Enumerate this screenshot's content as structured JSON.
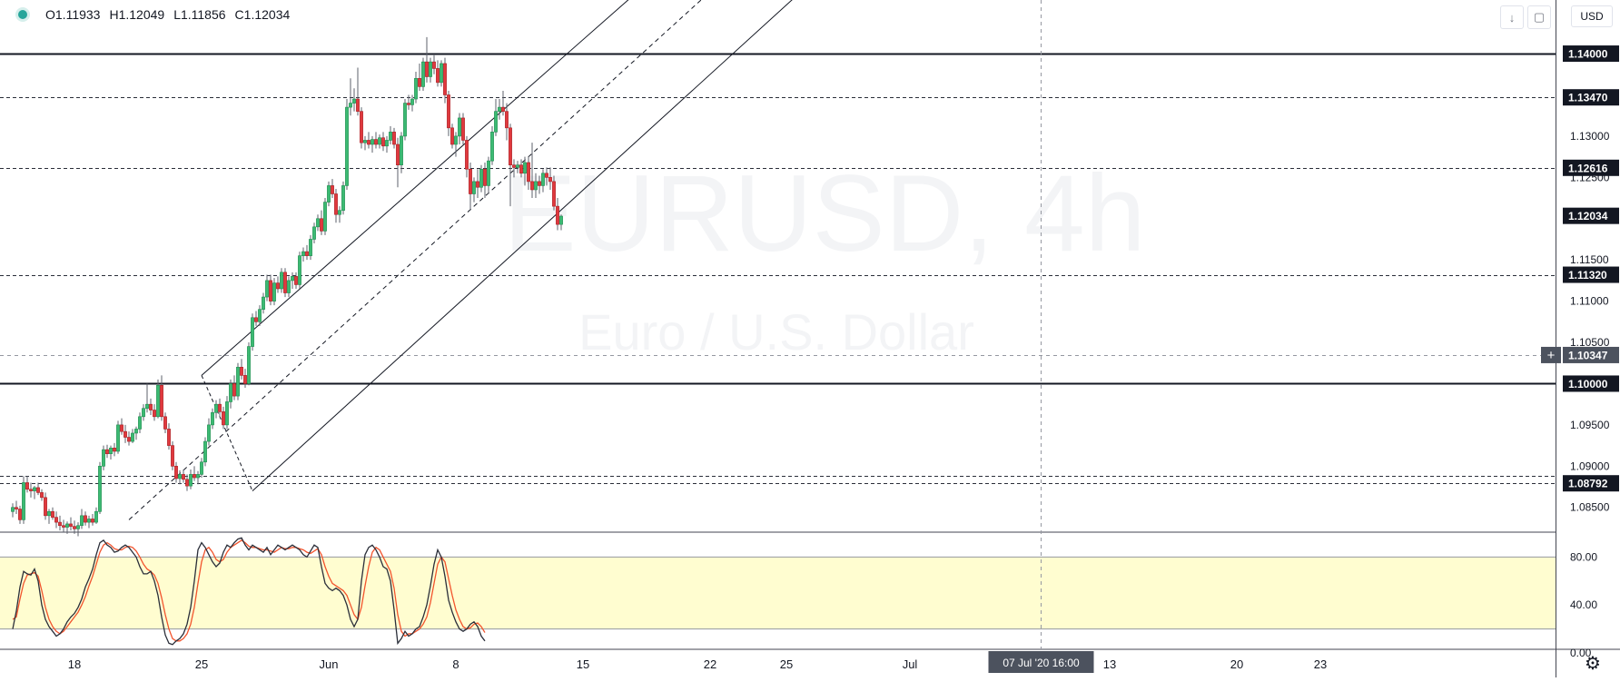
{
  "header": {
    "open": "O1.11933",
    "high": "H1.12049",
    "low": "L1.11856",
    "close": "C1.12034",
    "currency_label": "USD",
    "scroll_down_icon": "arrow-down-icon",
    "fullscreen_icon": "fullscreen-icon"
  },
  "watermark": {
    "symbol": "EURUSD, 4h",
    "description": "Euro / U.S. Dollar"
  },
  "colors": {
    "up": "#26a69a",
    "down": "#ef5350",
    "up_candle": "#3cba73",
    "down_candle": "#e0393e",
    "stoch_k": "#2a2e39",
    "stoch_d": "#f2542d",
    "stoch_band": "#fffdd0"
  },
  "chart_data": {
    "type": "candlestick",
    "price_axis": {
      "range": [
        1.082,
        1.1465
      ],
      "tick_labels": [
        "1.13000",
        "1.12500",
        "1.11500",
        "1.11000",
        "1.10500",
        "1.09500",
        "1.09000",
        "1.08500"
      ],
      "price_labels": [
        {
          "value": "1.14000",
          "level": 1.14,
          "style": "dark"
        },
        {
          "value": "1.13470",
          "level": 1.1347,
          "style": "dark"
        },
        {
          "value": "1.12616",
          "level": 1.12616,
          "style": "dark"
        },
        {
          "value": "1.12034",
          "level": 1.12034,
          "style": "dark"
        },
        {
          "value": "1.11320",
          "level": 1.1132,
          "style": "dark"
        },
        {
          "value": "1.10347",
          "level": 1.10347,
          "style": "crosshair"
        },
        {
          "value": "1.10000",
          "level": 1.1,
          "style": "dark"
        },
        {
          "value": "1.08792",
          "level": 1.08792,
          "style": "dark"
        }
      ]
    },
    "time_axis": {
      "labels": [
        {
          "text": "18",
          "index": 17
        },
        {
          "text": "25",
          "index": 52
        },
        {
          "text": "Jun",
          "index": 87
        },
        {
          "text": "8",
          "index": 122
        },
        {
          "text": "15",
          "index": 157
        },
        {
          "text": "22",
          "index": 192
        },
        {
          "text": "25",
          "index": 213
        },
        {
          "text": "Jul",
          "index": 247
        },
        {
          "text": "13",
          "index": 302
        },
        {
          "text": "20",
          "index": 337
        },
        {
          "text": "23",
          "index": 360
        }
      ],
      "crosshair_label": "07 Jul '20   16:00",
      "crosshair_index": 283
    },
    "horizontal_lines": [
      {
        "level": 1.14,
        "style": "solid"
      },
      {
        "level": 1.1347,
        "style": "dashed"
      },
      {
        "level": 1.12616,
        "style": "dashed"
      },
      {
        "level": 1.1132,
        "style": "dashed"
      },
      {
        "level": 1.10347,
        "style": "crosshair"
      },
      {
        "level": 1.1,
        "style": "solid"
      },
      {
        "level": 1.0888,
        "style": "dashed"
      },
      {
        "level": 1.08792,
        "style": "dashed"
      }
    ],
    "trend_channel": {
      "upper": [
        [
          52,
          1.101
        ],
        [
          172,
          1.1475
        ]
      ],
      "middle": [
        [
          32,
          1.0835
        ],
        [
          192,
          1.1475
        ]
      ],
      "lower": [
        [
          66,
          1.087
        ],
        [
          217,
          1.1475
        ]
      ],
      "retrace": [
        [
          52,
          1.101
        ],
        [
          66,
          1.087
        ]
      ]
    },
    "candles": [
      [
        1.0845,
        1.0855,
        1.0838,
        1.085
      ],
      [
        1.085,
        1.0858,
        1.0842,
        1.0848
      ],
      [
        1.0848,
        1.0852,
        1.083,
        1.0835
      ],
      [
        1.0835,
        1.0888,
        1.083,
        1.088
      ],
      [
        1.088,
        1.0888,
        1.0868,
        1.0872
      ],
      [
        1.0872,
        1.088,
        1.0862,
        1.087
      ],
      [
        1.087,
        1.0876,
        1.086,
        1.0874
      ],
      [
        1.0874,
        1.088,
        1.0865,
        1.0868
      ],
      [
        1.0868,
        1.0872,
        1.0858,
        1.0862
      ],
      [
        1.0862,
        1.0868,
        1.0835,
        1.084
      ],
      [
        1.084,
        1.0848,
        1.083,
        1.0845
      ],
      [
        1.0845,
        1.085,
        1.0835,
        1.0838
      ],
      [
        1.0838,
        1.0845,
        1.0825,
        1.0832
      ],
      [
        1.0832,
        1.084,
        1.0822,
        1.0828
      ],
      [
        1.0828,
        1.0835,
        1.082,
        1.0826
      ],
      [
        1.0826,
        1.0833,
        1.0818,
        1.083
      ],
      [
        1.083,
        1.0838,
        1.0822,
        1.0827
      ],
      [
        1.0827,
        1.0834,
        1.0818,
        1.0824
      ],
      [
        1.0824,
        1.0832,
        1.0815,
        1.0828
      ],
      [
        1.0828,
        1.0848,
        1.0824,
        1.084
      ],
      [
        1.084,
        1.0845,
        1.0828,
        1.0832
      ],
      [
        1.0832,
        1.084,
        1.0825,
        1.0836
      ],
      [
        1.0836,
        1.0842,
        1.0828,
        1.0832
      ],
      [
        1.0832,
        1.085,
        1.083,
        1.0845
      ],
      [
        1.0845,
        1.0905,
        1.0842,
        1.09
      ],
      [
        1.09,
        1.0925,
        1.0895,
        1.092
      ],
      [
        1.092,
        1.0926,
        1.091,
        1.0915
      ],
      [
        1.0915,
        1.0925,
        1.0908,
        1.0922
      ],
      [
        1.0922,
        1.0928,
        1.0912,
        1.0918
      ],
      [
        1.0918,
        1.0955,
        1.0915,
        1.095
      ],
      [
        1.095,
        1.0958,
        1.0938,
        1.0942
      ],
      [
        1.0942,
        1.095,
        1.0928,
        1.0935
      ],
      [
        1.0935,
        1.0942,
        1.0925,
        1.093
      ],
      [
        1.093,
        1.0945,
        1.0928,
        1.094
      ],
      [
        1.094,
        1.0948,
        1.0932,
        1.0945
      ],
      [
        1.0945,
        1.0965,
        1.094,
        1.096
      ],
      [
        1.096,
        1.0975,
        1.0955,
        1.097
      ],
      [
        1.097,
        1.1,
        1.0965,
        1.0975
      ],
      [
        1.0975,
        1.0982,
        1.0962,
        1.0968
      ],
      [
        1.0968,
        1.0975,
        1.0955,
        1.096
      ],
      [
        1.096,
        1.1005,
        1.0958,
        1.0998
      ],
      [
        1.0998,
        1.101,
        1.0955,
        1.096
      ],
      [
        1.096,
        1.0965,
        1.094,
        1.0945
      ],
      [
        1.0945,
        1.0952,
        1.092,
        1.0925
      ],
      [
        1.0925,
        1.093,
        1.0895,
        1.09
      ],
      [
        1.09,
        1.0905,
        1.088,
        1.0885
      ],
      [
        1.0885,
        1.0895,
        1.0878,
        1.089
      ],
      [
        1.089,
        1.0896,
        1.088,
        1.0884
      ],
      [
        1.0884,
        1.089,
        1.087,
        1.0876
      ],
      [
        1.0876,
        1.0896,
        1.0872,
        1.089
      ],
      [
        1.089,
        1.09,
        1.0882,
        1.0886
      ],
      [
        1.0886,
        1.0894,
        1.0878,
        1.089
      ],
      [
        1.089,
        1.091,
        1.0886,
        1.0905
      ],
      [
        1.0905,
        1.0935,
        1.09,
        1.093
      ],
      [
        1.093,
        1.0958,
        1.0925,
        1.095
      ],
      [
        1.095,
        1.097,
        1.0945,
        1.0965
      ],
      [
        1.0965,
        1.098,
        1.0958,
        1.0975
      ],
      [
        1.0975,
        1.0982,
        1.096,
        1.0966
      ],
      [
        1.0966,
        1.0972,
        1.0945,
        1.095
      ],
      [
        1.095,
        1.0985,
        1.0945,
        1.0978
      ],
      [
        1.0978,
        1.1005,
        1.097,
        1.1
      ],
      [
        1.1,
        1.101,
        1.098,
        1.0985
      ],
      [
        1.0985,
        1.1025,
        1.098,
        1.102
      ],
      [
        1.102,
        1.103,
        1.1005,
        1.101
      ],
      [
        1.101,
        1.1018,
        1.0995,
        1.1
      ],
      [
        1.1,
        1.105,
        1.0998,
        1.1045
      ],
      [
        1.1045,
        1.1085,
        1.104,
        1.108
      ],
      [
        1.108,
        1.1088,
        1.107,
        1.1075
      ],
      [
        1.1075,
        1.1095,
        1.107,
        1.109
      ],
      [
        1.109,
        1.111,
        1.1085,
        1.1105
      ],
      [
        1.1105,
        1.1132,
        1.11,
        1.1125
      ],
      [
        1.1125,
        1.1132,
        1.1095,
        1.11
      ],
      [
        1.11,
        1.1128,
        1.1095,
        1.1122
      ],
      [
        1.1122,
        1.113,
        1.111,
        1.1115
      ],
      [
        1.1115,
        1.114,
        1.111,
        1.1135
      ],
      [
        1.1135,
        1.114,
        1.1105,
        1.111
      ],
      [
        1.111,
        1.113,
        1.1105,
        1.1125
      ],
      [
        1.1125,
        1.1135,
        1.1115,
        1.113
      ],
      [
        1.113,
        1.1135,
        1.1115,
        1.112
      ],
      [
        1.112,
        1.116,
        1.1115,
        1.1155
      ],
      [
        1.1155,
        1.1165,
        1.1148,
        1.116
      ],
      [
        1.116,
        1.1168,
        1.115,
        1.1155
      ],
      [
        1.1155,
        1.118,
        1.115,
        1.1175
      ],
      [
        1.1175,
        1.1195,
        1.117,
        1.119
      ],
      [
        1.119,
        1.1205,
        1.1185,
        1.12
      ],
      [
        1.12,
        1.121,
        1.118,
        1.1185
      ],
      [
        1.1185,
        1.1225,
        1.118,
        1.122
      ],
      [
        1.122,
        1.1245,
        1.1215,
        1.124
      ],
      [
        1.124,
        1.1248,
        1.1225,
        1.123
      ],
      [
        1.123,
        1.1236,
        1.1195,
        1.1205
      ],
      [
        1.1205,
        1.1215,
        1.1195,
        1.121
      ],
      [
        1.121,
        1.1245,
        1.1205,
        1.124
      ],
      [
        1.124,
        1.1345,
        1.1235,
        1.1335
      ],
      [
        1.1335,
        1.137,
        1.1325,
        1.134
      ],
      [
        1.134,
        1.1358,
        1.133,
        1.1345
      ],
      [
        1.1345,
        1.1383,
        1.1325,
        1.133
      ],
      [
        1.133,
        1.1335,
        1.1285,
        1.1292
      ],
      [
        1.1292,
        1.13,
        1.1283,
        1.1295
      ],
      [
        1.1295,
        1.1305,
        1.1285,
        1.129
      ],
      [
        1.129,
        1.13,
        1.128,
        1.1296
      ],
      [
        1.1296,
        1.1305,
        1.1285,
        1.129
      ],
      [
        1.129,
        1.1302,
        1.1285,
        1.1298
      ],
      [
        1.1298,
        1.1305,
        1.1282,
        1.1288
      ],
      [
        1.1288,
        1.13,
        1.128,
        1.1295
      ],
      [
        1.1295,
        1.1312,
        1.129,
        1.1305
      ],
      [
        1.1305,
        1.131,
        1.1285,
        1.129
      ],
      [
        1.129,
        1.1298,
        1.1238,
        1.1265
      ],
      [
        1.1265,
        1.1305,
        1.1255,
        1.13
      ],
      [
        1.13,
        1.1345,
        1.1295,
        1.134
      ],
      [
        1.134,
        1.135,
        1.1332,
        1.1338
      ],
      [
        1.1338,
        1.135,
        1.133,
        1.1345
      ],
      [
        1.1345,
        1.1378,
        1.134,
        1.137
      ],
      [
        1.137,
        1.1388,
        1.1355,
        1.136
      ],
      [
        1.136,
        1.1395,
        1.1355,
        1.139
      ],
      [
        1.139,
        1.142,
        1.1365,
        1.1372
      ],
      [
        1.1372,
        1.1395,
        1.1365,
        1.139
      ],
      [
        1.139,
        1.1398,
        1.1375,
        1.1382
      ],
      [
        1.1382,
        1.1392,
        1.136,
        1.1365
      ],
      [
        1.1365,
        1.1392,
        1.136,
        1.1388
      ],
      [
        1.1388,
        1.1395,
        1.134,
        1.135
      ],
      [
        1.135,
        1.1355,
        1.13,
        1.131
      ],
      [
        1.131,
        1.1315,
        1.1285,
        1.129
      ],
      [
        1.129,
        1.1305,
        1.1275,
        1.13
      ],
      [
        1.13,
        1.1328,
        1.129,
        1.1322
      ],
      [
        1.1322,
        1.1328,
        1.129,
        1.1295
      ],
      [
        1.1295,
        1.13,
        1.125,
        1.126
      ],
      [
        1.126,
        1.1268,
        1.121,
        1.123
      ],
      [
        1.123,
        1.125,
        1.122,
        1.1245
      ],
      [
        1.1245,
        1.126,
        1.1225,
        1.1238
      ],
      [
        1.1238,
        1.1265,
        1.1232,
        1.126
      ],
      [
        1.126,
        1.1268,
        1.1225,
        1.124
      ],
      [
        1.124,
        1.1275,
        1.123,
        1.127
      ],
      [
        1.127,
        1.1312,
        1.1265,
        1.1305
      ],
      [
        1.1305,
        1.1345,
        1.13,
        1.133
      ],
      [
        1.133,
        1.1345,
        1.132,
        1.1335
      ],
      [
        1.1335,
        1.1355,
        1.1325,
        1.133
      ],
      [
        1.133,
        1.134,
        1.1295,
        1.131
      ],
      [
        1.131,
        1.1315,
        1.1215,
        1.1265
      ],
      [
        1.1265,
        1.1272,
        1.125,
        1.1262
      ],
      [
        1.1262,
        1.127,
        1.1255,
        1.1265
      ],
      [
        1.1265,
        1.1272,
        1.125,
        1.1255
      ],
      [
        1.1255,
        1.1275,
        1.124,
        1.1268
      ],
      [
        1.1268,
        1.1275,
        1.1235,
        1.1245
      ],
      [
        1.1245,
        1.1292,
        1.1225,
        1.1235
      ],
      [
        1.1235,
        1.1255,
        1.1225,
        1.1245
      ],
      [
        1.1245,
        1.1252,
        1.123,
        1.124
      ],
      [
        1.124,
        1.126,
        1.1232,
        1.1255
      ],
      [
        1.1255,
        1.1262,
        1.124,
        1.125
      ],
      [
        1.125,
        1.1262,
        1.1235,
        1.1245
      ],
      [
        1.1245,
        1.1252,
        1.121,
        1.1215
      ],
      [
        1.1215,
        1.1225,
        1.1186,
        1.1193
      ],
      [
        1.1193,
        1.1205,
        1.1186,
        1.1203
      ]
    ],
    "stochastic": {
      "levels": [
        80,
        20
      ],
      "tick_labels": [
        "80.00",
        "40.00",
        "0.00"
      ],
      "k": [
        20,
        35,
        55,
        68,
        66,
        65,
        70,
        60,
        40,
        28,
        22,
        18,
        14,
        16,
        20,
        26,
        30,
        33,
        38,
        45,
        55,
        62,
        70,
        82,
        92,
        94,
        90,
        88,
        84,
        85,
        88,
        90,
        88,
        84,
        80,
        72,
        66,
        66,
        68,
        60,
        48,
        30,
        15,
        8,
        7,
        10,
        12,
        16,
        24,
        38,
        60,
        86,
        92,
        88,
        82,
        76,
        72,
        75,
        84,
        90,
        88,
        92,
        95,
        96,
        90,
        86,
        90,
        88,
        86,
        84,
        88,
        82,
        86,
        90,
        88,
        86,
        88,
        90,
        88,
        86,
        82,
        80,
        85,
        90,
        88,
        72,
        58,
        54,
        52,
        54,
        52,
        48,
        40,
        28,
        22,
        28,
        60,
        82,
        88,
        90,
        86,
        80,
        72,
        70,
        60,
        36,
        8,
        12,
        18,
        14,
        16,
        20,
        22,
        30,
        40,
        56,
        74,
        86,
        80,
        64,
        44,
        34,
        26,
        20,
        18,
        20,
        24,
        26,
        22,
        14,
        10
      ],
      "d": [
        28,
        30,
        45,
        58,
        65,
        66,
        67,
        64,
        52,
        38,
        28,
        22,
        18,
        16,
        18,
        22,
        26,
        30,
        34,
        40,
        47,
        56,
        64,
        74,
        84,
        90,
        92,
        90,
        87,
        86,
        86,
        88,
        89,
        88,
        85,
        80,
        74,
        70,
        68,
        65,
        58,
        46,
        32,
        20,
        12,
        10,
        10,
        12,
        16,
        24,
        38,
        58,
        76,
        86,
        88,
        84,
        78,
        76,
        78,
        84,
        88,
        90,
        92,
        94,
        92,
        89,
        88,
        88,
        87,
        86,
        86,
        85,
        84,
        86,
        88,
        87,
        87,
        88,
        88,
        87,
        86,
        84,
        83,
        85,
        87,
        82,
        72,
        64,
        58,
        56,
        54,
        52,
        48,
        40,
        32,
        28,
        38,
        56,
        72,
        84,
        88,
        86,
        80,
        74,
        68,
        54,
        32,
        18,
        14,
        16,
        16,
        18,
        20,
        24,
        30,
        42,
        58,
        74,
        80,
        76,
        62,
        48,
        36,
        28,
        22,
        20,
        21,
        24,
        25,
        22,
        17
      ]
    }
  }
}
